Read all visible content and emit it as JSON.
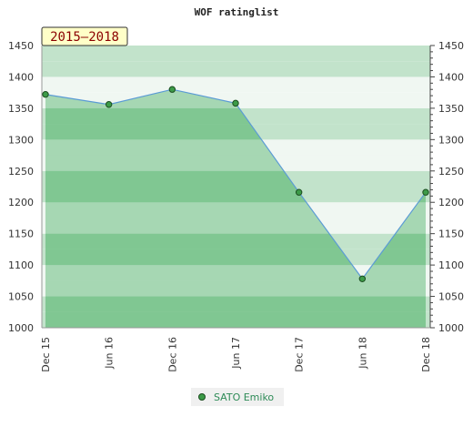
{
  "chart_data": {
    "type": "area",
    "title": "WOF ratinglist",
    "range_label": "2015–2018",
    "categories": [
      "Dec 15",
      "Jun 16",
      "Dec 16",
      "Jun 17",
      "Dec 17",
      "Jun 18",
      "Dec 18"
    ],
    "series": [
      {
        "name": "SATO Emiko",
        "values": [
          1372,
          1356,
          1380,
          1358,
          1216,
          1078,
          1216
        ]
      }
    ],
    "ylim": [
      1000,
      1450
    ],
    "y_ticks": [
      1000,
      1050,
      1100,
      1150,
      1200,
      1250,
      1300,
      1350,
      1400,
      1450
    ],
    "y_tick_labels": [
      "1000",
      "1050",
      "1100",
      "1150",
      "1200",
      "1250",
      "1300",
      "1350",
      "1400",
      "1450"
    ],
    "grid": true,
    "legend": "bottom-center",
    "colors": {
      "line": "#5b9bd5",
      "area": "#4caf66",
      "marker": "#2e7d32",
      "band_light": "#f0f7f2",
      "band_dark": "#c2e3cb"
    }
  }
}
